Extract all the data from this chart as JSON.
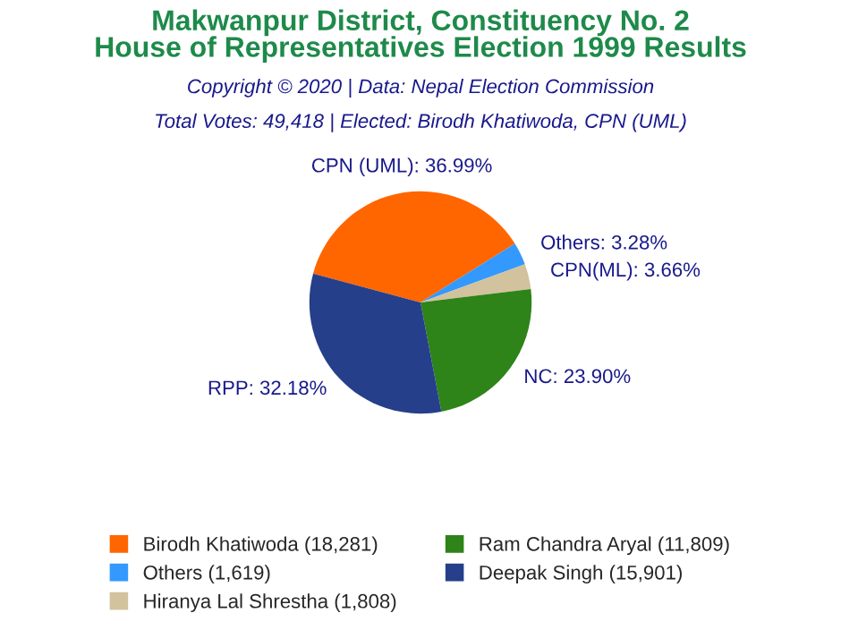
{
  "chart_data": {
    "type": "pie",
    "title": "Makwanpur District, Constituency No. 2\nHouse of Representatives Election 1999 Results",
    "subtitle": "Total Votes: 49,418 | Elected: Birodh Khatiwoda, CPN (UML)",
    "annotations": [
      "Copyright © 2020 | Data: Nepal Election Commission"
    ],
    "categories": [
      "Birodh Khatiwoda (18,281)",
      "Others (1,619)",
      "Hiranya Lal Shrestha (1,808)",
      "Ram Chandra Aryal (11,809)",
      "Deepak Singh (15,901)"
    ],
    "values": [
      36.99,
      3.28,
      3.66,
      23.9,
      32.18
    ],
    "value_labels": [
      "CPN (UML): 36.99%",
      "Others: 3.28%",
      "CPN(ML): 3.66%",
      "NC: 23.90%",
      "RPP: 32.18%"
    ],
    "colors": [
      "#ff6600",
      "#3399ff",
      "#d2c29d",
      "#2e8319",
      "#263f8a"
    ],
    "legend": "bottom"
  }
}
